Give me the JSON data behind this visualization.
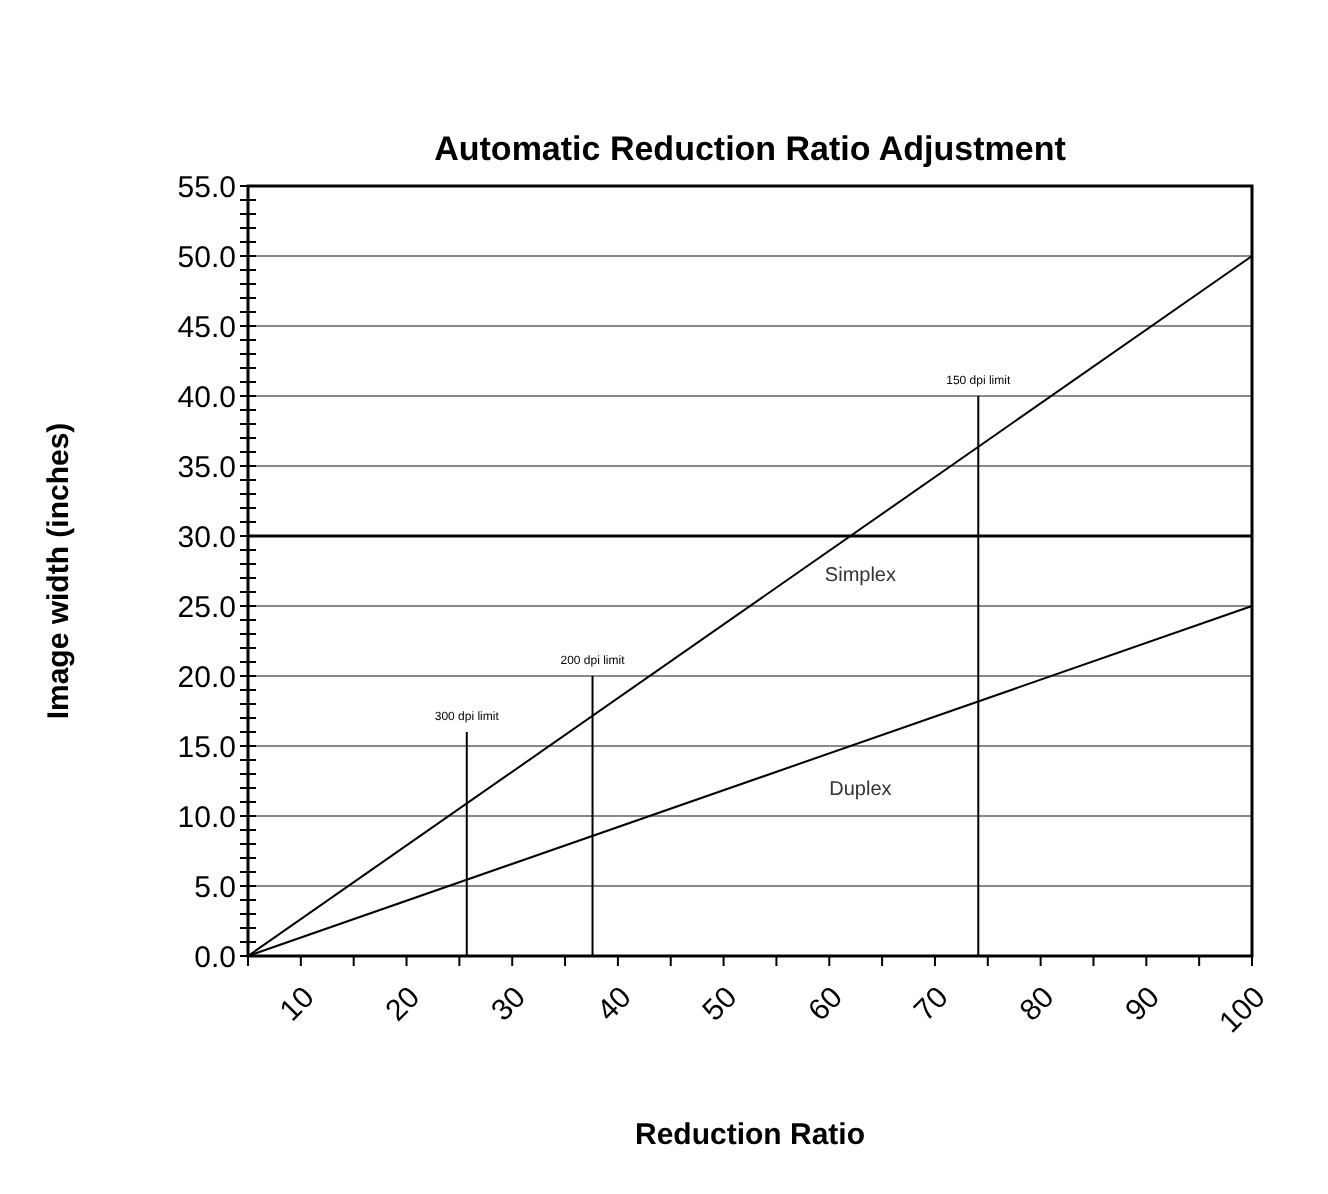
{
  "chart_data": {
    "type": "line",
    "title": "Automatic Reduction Ratio Adjustment",
    "xlabel": "Reduction Ratio",
    "ylabel": "Image width (inches)",
    "xlim": [
      5,
      100
    ],
    "xticks": [
      10,
      20,
      30,
      40,
      50,
      60,
      70,
      80,
      90,
      100
    ],
    "ylim": [
      0,
      55
    ],
    "yticks": [
      {
        "value": 0,
        "label": "0.0"
      },
      {
        "value": 5,
        "label": "5.0"
      },
      {
        "value": 10,
        "label": "10.0"
      },
      {
        "value": 15,
        "label": "15.0"
      },
      {
        "value": 20,
        "label": "20.0"
      },
      {
        "value": 25,
        "label": "25.0"
      },
      {
        "value": 30,
        "label": "30.0"
      },
      {
        "value": 35,
        "label": "35.0"
      },
      {
        "value": 40,
        "label": "40.0"
      },
      {
        "value": 45,
        "label": "45.0"
      },
      {
        "value": 50,
        "label": "50.0"
      },
      {
        "value": 55,
        "label": "55.0"
      }
    ],
    "grid": "y",
    "legend": false,
    "marker": "none",
    "line_style": "solid",
    "series": [
      {
        "name": "Simplex",
        "color": "#000000",
        "x": [
          5,
          100
        ],
        "values": [
          0,
          50
        ]
      },
      {
        "name": "Duplex",
        "color": "#000000",
        "x": [
          5,
          100
        ],
        "values": [
          0,
          25
        ]
      },
      {
        "color": "#000000",
        "x": [
          25.7,
          25.7
        ],
        "values": [
          0,
          16
        ]
      },
      {
        "color": "#000000",
        "x": [
          37.6,
          37.6
        ],
        "values": [
          0,
          20
        ]
      },
      {
        "color": "#000000",
        "x": [
          74.1,
          74.1
        ],
        "values": [
          0,
          40
        ]
      }
    ],
    "ref_lines": [
      {
        "axis": "y",
        "value": 30,
        "color": "#000000"
      }
    ],
    "annotations": [
      {
        "text": "300 dpi limit",
        "x": 25.7,
        "y": 16
      },
      {
        "text": "200 dpi limit",
        "x": 37.6,
        "y": 20
      },
      {
        "text": "150 dpi limit",
        "x": 74.1,
        "y": 40
      }
    ]
  }
}
